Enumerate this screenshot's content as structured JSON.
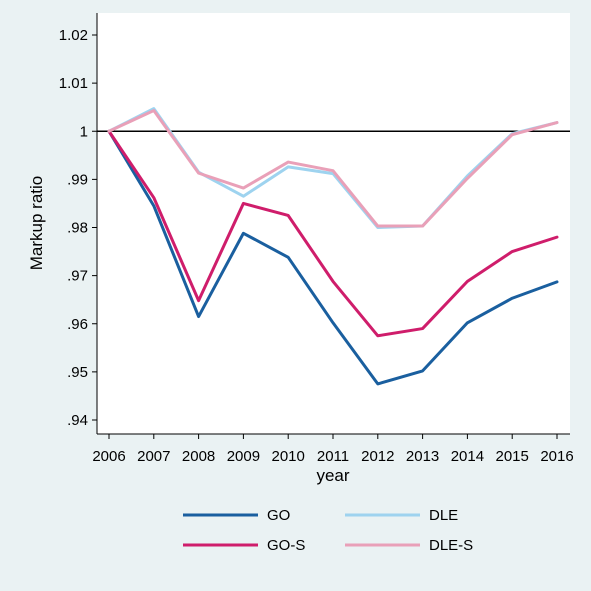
{
  "chart_data": {
    "type": "line",
    "title": "",
    "xlabel": "year",
    "ylabel": "Markup ratio",
    "x": [
      2006,
      2007,
      2008,
      2009,
      2010,
      2011,
      2012,
      2013,
      2014,
      2015,
      2016
    ],
    "xlim": [
      2006,
      2016
    ],
    "ylim": [
      0.94,
      1.02
    ],
    "yticks": [
      0.94,
      0.95,
      0.96,
      0.97,
      0.98,
      0.99,
      1.0,
      1.01,
      1.02
    ],
    "ytick_labels": [
      ".94",
      ".95",
      ".96",
      ".97",
      ".98",
      ".99",
      "1",
      "1.01",
      "1.02"
    ],
    "xtick_labels": [
      "2006",
      "2007",
      "2008",
      "2009",
      "2010",
      "2011",
      "2012",
      "2013",
      "2014",
      "2015",
      "2016"
    ],
    "reference_line": 1.0,
    "grid": false,
    "legend_position": "bottom",
    "series": [
      {
        "name": "GO",
        "color": "#1a5f9f",
        "values": [
          1.0,
          0.9845,
          0.9615,
          0.9788,
          0.9738,
          0.9602,
          0.9475,
          0.9502,
          0.9602,
          0.9653,
          0.9687
        ]
      },
      {
        "name": "DLE",
        "color": "#9ed3ef",
        "values": [
          1.0,
          1.0047,
          0.9915,
          0.9865,
          0.9926,
          0.9912,
          0.98,
          0.9803,
          0.9907,
          0.9995,
          1.0018
        ]
      },
      {
        "name": "GO-S",
        "color": "#cf1d6b",
        "values": [
          1.0,
          0.9862,
          0.9648,
          0.985,
          0.9825,
          0.9688,
          0.9575,
          0.959,
          0.9688,
          0.975,
          0.978
        ]
      },
      {
        "name": "DLE-S",
        "color": "#e9a0b8",
        "values": [
          1.0,
          1.0043,
          0.9913,
          0.9882,
          0.9936,
          0.9918,
          0.9803,
          0.9803,
          0.9902,
          0.9993,
          1.0018
        ]
      }
    ]
  }
}
